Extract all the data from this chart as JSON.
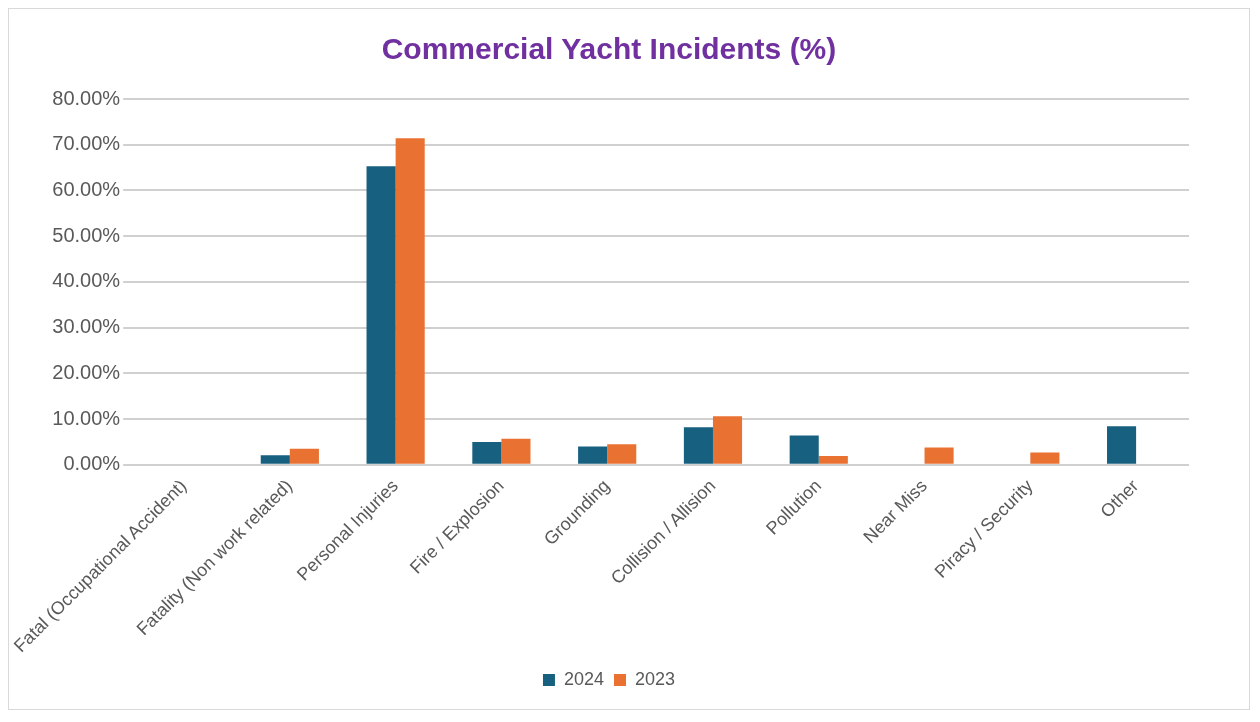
{
  "chart_data": {
    "type": "bar",
    "title": "Commercial Yacht Incidents (%)",
    "categories": [
      "Fatal (Occupational Accident)",
      "Fatality (Non work related)",
      "Personal Injuries",
      "Fire / Explosion",
      "Grounding",
      "Collision / Allision",
      "Pollution",
      "Near Miss",
      "Piracy / Security",
      "Other"
    ],
    "series": [
      {
        "name": "2024",
        "color": "#17607f",
        "values": [
          0,
          2.1,
          65.3,
          5.0,
          4.0,
          8.2,
          6.4,
          0,
          0,
          8.4
        ]
      },
      {
        "name": "2023",
        "color": "#e97132",
        "values": [
          0,
          3.5,
          71.4,
          5.7,
          4.5,
          10.6,
          1.9,
          3.8,
          2.7,
          0
        ]
      }
    ],
    "ylim": [
      0,
      80
    ],
    "yticks": [
      {
        "value": 0,
        "label": "0.00%"
      },
      {
        "value": 10,
        "label": "10.00%"
      },
      {
        "value": 20,
        "label": "20.00%"
      },
      {
        "value": 30,
        "label": "30.00%"
      },
      {
        "value": 40,
        "label": "40.00%"
      },
      {
        "value": 50,
        "label": "50.00%"
      },
      {
        "value": 60,
        "label": "60.00%"
      },
      {
        "value": 70,
        "label": "70.00%"
      },
      {
        "value": 80,
        "label": "80.00%"
      }
    ],
    "grid": "y",
    "legend": "bottom"
  }
}
